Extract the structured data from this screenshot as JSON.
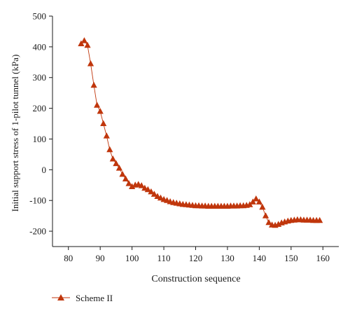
{
  "chart_data": {
    "type": "line",
    "title": "",
    "xlabel": "Construction sequence",
    "ylabel": "Initial support stress of 1-pilot tunnel (kPa)",
    "xlim": [
      75,
      165
    ],
    "ylim": [
      -250,
      500
    ],
    "xticks": [
      80,
      90,
      100,
      110,
      120,
      130,
      140,
      150,
      160
    ],
    "yticks": [
      -200,
      -100,
      0,
      100,
      200,
      300,
      400,
      500
    ],
    "grid": false,
    "legend_position": "bottom-left",
    "series": [
      {
        "name": "Scheme II",
        "color": "#c0360c",
        "marker": "triangle",
        "x": [
          84,
          85,
          86,
          87,
          88,
          89,
          90,
          91,
          92,
          93,
          94,
          95,
          96,
          97,
          98,
          99,
          100,
          101,
          102,
          103,
          104,
          105,
          106,
          107,
          108,
          109,
          110,
          111,
          112,
          113,
          114,
          115,
          116,
          117,
          118,
          119,
          120,
          121,
          122,
          123,
          124,
          125,
          126,
          127,
          128,
          129,
          130,
          131,
          132,
          133,
          134,
          135,
          136,
          137,
          138,
          139,
          140,
          141,
          142,
          143,
          144,
          145,
          146,
          147,
          148,
          149,
          150,
          151,
          152,
          153,
          154,
          155,
          156,
          157,
          158,
          159
        ],
        "y": [
          410,
          420,
          405,
          345,
          275,
          210,
          190,
          150,
          110,
          65,
          35,
          20,
          5,
          -15,
          -30,
          -45,
          -55,
          -50,
          -48,
          -52,
          -60,
          -65,
          -72,
          -80,
          -87,
          -92,
          -97,
          -100,
          -104,
          -107,
          -109,
          -111,
          -113,
          -114,
          -115,
          -116,
          -117,
          -117,
          -118,
          -118,
          -119,
          -119,
          -119,
          -119,
          -119,
          -119,
          -119,
          -118,
          -118,
          -118,
          -117,
          -117,
          -116,
          -114,
          -105,
          -95,
          -105,
          -122,
          -150,
          -172,
          -180,
          -181,
          -178,
          -173,
          -170,
          -167,
          -165,
          -164,
          -163,
          -163,
          -164,
          -164,
          -164,
          -165,
          -165,
          -165
        ]
      }
    ]
  }
}
